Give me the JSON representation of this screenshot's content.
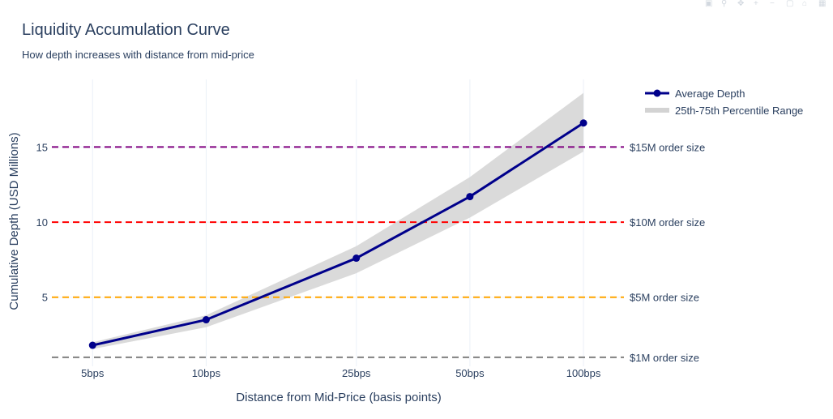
{
  "chart_data": {
    "type": "line",
    "title": "Liquidity Accumulation Curve",
    "subtitle": "How depth increases with distance from mid-price",
    "xlabel": "Distance from Mid-Price (basis points)",
    "ylabel": "Cumulative Depth (USD Millions)",
    "x_scale": "log",
    "x": [
      5,
      10,
      25,
      50,
      100
    ],
    "x_tick_labels": [
      "5bps",
      "10bps",
      "25bps",
      "50bps",
      "100bps"
    ],
    "yticks": [
      5,
      10,
      15
    ],
    "ylim": [
      0.4,
      19.5
    ],
    "series": [
      {
        "name": "Average Depth",
        "color": "#00008b",
        "values": [
          1.8,
          3.5,
          7.6,
          11.7,
          16.6
        ]
      },
      {
        "name": "25th-75th Percentile Range",
        "color": "#d3d3d3",
        "lower": [
          1.55,
          3.0,
          6.6,
          10.3,
          14.7
        ],
        "upper": [
          2.0,
          3.8,
          8.4,
          13.0,
          18.6
        ]
      }
    ],
    "reference_lines": [
      {
        "y": 15,
        "label": "$15M order size",
        "color": "#800080"
      },
      {
        "y": 10,
        "label": "$10M order size",
        "color": "#ff0000"
      },
      {
        "y": 5,
        "label": "$5M order size",
        "color": "#ffa500"
      },
      {
        "y": 1,
        "label": "$1M order size",
        "color": "#808080"
      }
    ],
    "grid": true,
    "legend_position": "top-right"
  }
}
